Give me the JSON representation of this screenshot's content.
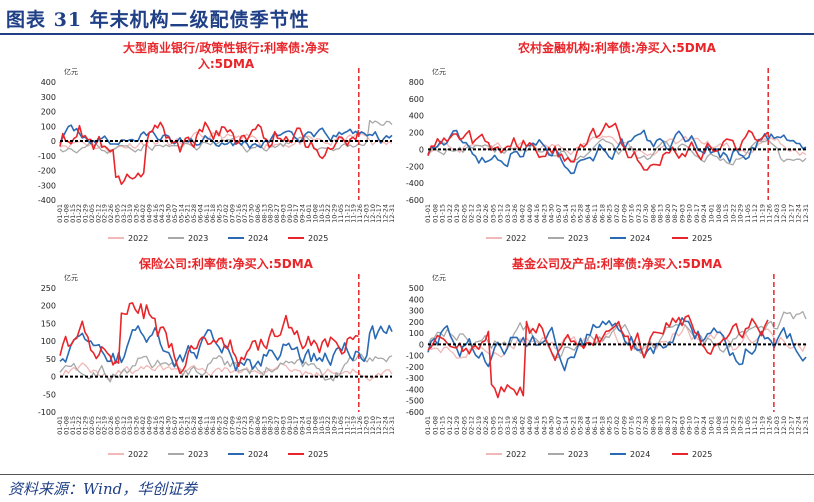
{
  "header": {
    "title": "图表 31 年末机构二级配债季节性"
  },
  "footer": {
    "source": "资料来源：Wind，华创证券"
  },
  "colors": {
    "y2022": "#f2b8b8",
    "y2023": "#a8a8a8",
    "y2024": "#2a6ab4",
    "y2025": "#e8262a",
    "title": "#e8262a",
    "zero": "#000000",
    "marker": "#e8262a"
  },
  "x_ticks": [
    "01-01",
    "01-07",
    "01-13",
    "01-19",
    "01-25",
    "02-01",
    "02-07",
    "02-13",
    "02-19",
    "02-25",
    "03-03",
    "03-09",
    "03-15",
    "03-21",
    "03-27",
    "04-03",
    "04-09",
    "04-15",
    "04-21",
    "04-27",
    "05-04",
    "05-10",
    "05-16",
    "05-22",
    "05-28",
    "06-04",
    "06-10",
    "06-16",
    "06-22",
    "06-28",
    "07-05",
    "07-11",
    "07-17",
    "07-23",
    "07-29",
    "08-05",
    "08-11",
    "08-17",
    "08-23",
    "08-29",
    "09-05",
    "09-11",
    "09-17",
    "09-23",
    "09-29",
    "10-06",
    "10-12",
    "10-18",
    "10-24",
    "10-30",
    "11-06",
    "11-12",
    "11-18",
    "11-24",
    "11-30",
    "12-06",
    "12-12",
    "12-18",
    "12-24",
    "12-30"
  ],
  "chart_data": [
    {
      "type": "line",
      "title_lines": [
        "大型商业银行/政策性银行:利率债:净买",
        "入:5DMA"
      ],
      "unit": "亿元",
      "ylim": [
        -400,
        400
      ],
      "yticks": [
        400,
        300,
        200,
        100,
        0,
        -100,
        -200,
        -300,
        -400
      ],
      "xticks": [
        "01-01",
        "01-08",
        "01-15",
        "01-22",
        "01-29",
        "02-05",
        "02-12",
        "02-19",
        "02-26",
        "03-05",
        "03-12",
        "03-19",
        "03-26",
        "04-02",
        "04-09",
        "04-16",
        "04-23",
        "04-30",
        "05-07",
        "05-14",
        "05-21",
        "05-28",
        "06-04",
        "06-11",
        "06-18",
        "06-25",
        "07-02",
        "07-09",
        "07-16",
        "07-23",
        "07-30",
        "08-06",
        "08-13",
        "08-20",
        "08-27",
        "09-03",
        "09-10",
        "09-17",
        "09-24",
        "10-01",
        "10-08",
        "10-15",
        "10-22",
        "10-29",
        "11-05",
        "11-12",
        "11-19",
        "11-26",
        "12-03",
        "12-10",
        "12-17",
        "12-24",
        "12-31"
      ],
      "marker_frac": 0.9,
      "series": [
        {
          "name": "2022",
          "n": 120,
          "base": -10,
          "amp": 70,
          "seed": 11
        },
        {
          "name": "2023",
          "n": 120,
          "base": -30,
          "amp": 60,
          "seed": 23,
          "tail": 150
        },
        {
          "name": "2024",
          "n": 120,
          "base": 20,
          "amp": 80,
          "seed": 37
        },
        {
          "name": "2025",
          "n": 108,
          "base": 30,
          "amp": 150,
          "seed": 53,
          "dip": -300
        }
      ]
    },
    {
      "type": "line",
      "title_lines": [
        "农村金融机构:利率债:净买入:5DMA"
      ],
      "unit": "亿元",
      "ylim": [
        -600,
        800
      ],
      "yticks": [
        800,
        600,
        400,
        200,
        0,
        -200,
        -400,
        -600
      ],
      "xticks": [
        "01-01",
        "01-08",
        "01-15",
        "01-22",
        "01-29",
        "02-05",
        "02-12",
        "02-19",
        "02-26",
        "03-05",
        "03-12",
        "03-19",
        "03-26",
        "04-02",
        "04-09",
        "04-16",
        "04-23",
        "04-30",
        "05-07",
        "05-14",
        "05-21",
        "05-28",
        "06-04",
        "06-11",
        "06-18",
        "06-25",
        "07-02",
        "07-09",
        "07-16",
        "07-23",
        "07-30",
        "08-06",
        "08-13",
        "08-20",
        "08-27",
        "09-03",
        "09-10",
        "09-17",
        "09-24",
        "10-01",
        "10-08",
        "10-15",
        "10-22",
        "10-29",
        "11-05",
        "11-12",
        "11-19",
        "11-26",
        "12-03",
        "12-10",
        "12-17",
        "12-24",
        "12-31"
      ],
      "marker_frac": 0.9,
      "series": [
        {
          "name": "2022",
          "n": 120,
          "base": 20,
          "amp": 120,
          "seed": 71
        },
        {
          "name": "2023",
          "n": 120,
          "base": -20,
          "amp": 130,
          "seed": 83,
          "tail": -150
        },
        {
          "name": "2024",
          "n": 120,
          "base": 40,
          "amp": 220,
          "seed": 97
        },
        {
          "name": "2025",
          "n": 108,
          "base": 30,
          "amp": 230,
          "seed": 113
        }
      ]
    },
    {
      "type": "line",
      "title_lines": [
        "保险公司:利率债:净买入:5DMA"
      ],
      "unit": "亿元",
      "ylim": [
        -100,
        250
      ],
      "yticks": [
        250,
        200,
        150,
        100,
        50,
        0,
        -50,
        -100
      ],
      "xticks": [
        "01-01",
        "01-08",
        "01-15",
        "01-22",
        "01-29",
        "02-05",
        "02-12",
        "02-19",
        "02-26",
        "03-05",
        "03-12",
        "03-19",
        "03-26",
        "04-02",
        "04-09",
        "04-16",
        "04-23",
        "04-30",
        "05-07",
        "05-14",
        "05-21",
        "05-28",
        "06-04",
        "06-11",
        "06-18",
        "06-25",
        "07-02",
        "07-09",
        "07-16",
        "07-23",
        "07-30",
        "08-06",
        "08-13",
        "08-20",
        "08-27",
        "09-03",
        "09-10",
        "09-17",
        "09-24",
        "10-01",
        "10-08",
        "10-15",
        "10-22",
        "10-29",
        "11-05",
        "11-12",
        "11-19",
        "11-26",
        "12-03",
        "12-10",
        "12-17",
        "12-24",
        "12-31"
      ],
      "marker_frac": 0.9,
      "series": [
        {
          "name": "2022",
          "n": 120,
          "base": 15,
          "amp": 25,
          "seed": 131
        },
        {
          "name": "2023",
          "n": 120,
          "base": 30,
          "amp": 40,
          "seed": 149,
          "tail": 60
        },
        {
          "name": "2024",
          "n": 120,
          "base": 70,
          "amp": 60,
          "seed": 163,
          "tail": 150
        },
        {
          "name": "2025",
          "n": 108,
          "base": 90,
          "amp": 70,
          "seed": 181,
          "peak": 210
        }
      ]
    },
    {
      "type": "line",
      "title_lines": [
        "基金公司及产品:利率债:净买入:5DMA"
      ],
      "unit": "亿元",
      "ylim": [
        -600,
        500
      ],
      "yticks": [
        500,
        400,
        300,
        200,
        100,
        0,
        -100,
        -200,
        -300,
        -400,
        -500,
        -600
      ],
      "xticks": [
        "01-01",
        "01-08",
        "01-15",
        "01-22",
        "01-29",
        "02-05",
        "02-12",
        "02-19",
        "02-26",
        "03-05",
        "03-12",
        "03-19",
        "03-26",
        "04-02",
        "04-09",
        "04-16",
        "04-23",
        "04-30",
        "05-07",
        "05-14",
        "05-21",
        "05-28",
        "06-04",
        "06-11",
        "06-18",
        "06-25",
        "07-02",
        "07-09",
        "07-16",
        "07-23",
        "07-30",
        "08-06",
        "08-13",
        "08-20",
        "08-27",
        "09-03",
        "09-10",
        "09-17",
        "09-24",
        "10-01",
        "10-08",
        "10-15",
        "10-22",
        "10-29",
        "11-05",
        "11-12",
        "11-19",
        "11-26",
        "12-03",
        "12-10",
        "12-17",
        "12-24",
        "12-31"
      ],
      "marker_frac": 0.915,
      "series": [
        {
          "name": "2022",
          "n": 120,
          "base": 40,
          "amp": 150,
          "seed": 199
        },
        {
          "name": "2023",
          "n": 120,
          "base": 60,
          "amp": 140,
          "seed": 211,
          "tail": 300
        },
        {
          "name": "2024",
          "n": 120,
          "base": 20,
          "amp": 200,
          "seed": 227
        },
        {
          "name": "2025",
          "n": 108,
          "base": 50,
          "amp": 220,
          "seed": 239,
          "dip": -480
        }
      ]
    }
  ]
}
